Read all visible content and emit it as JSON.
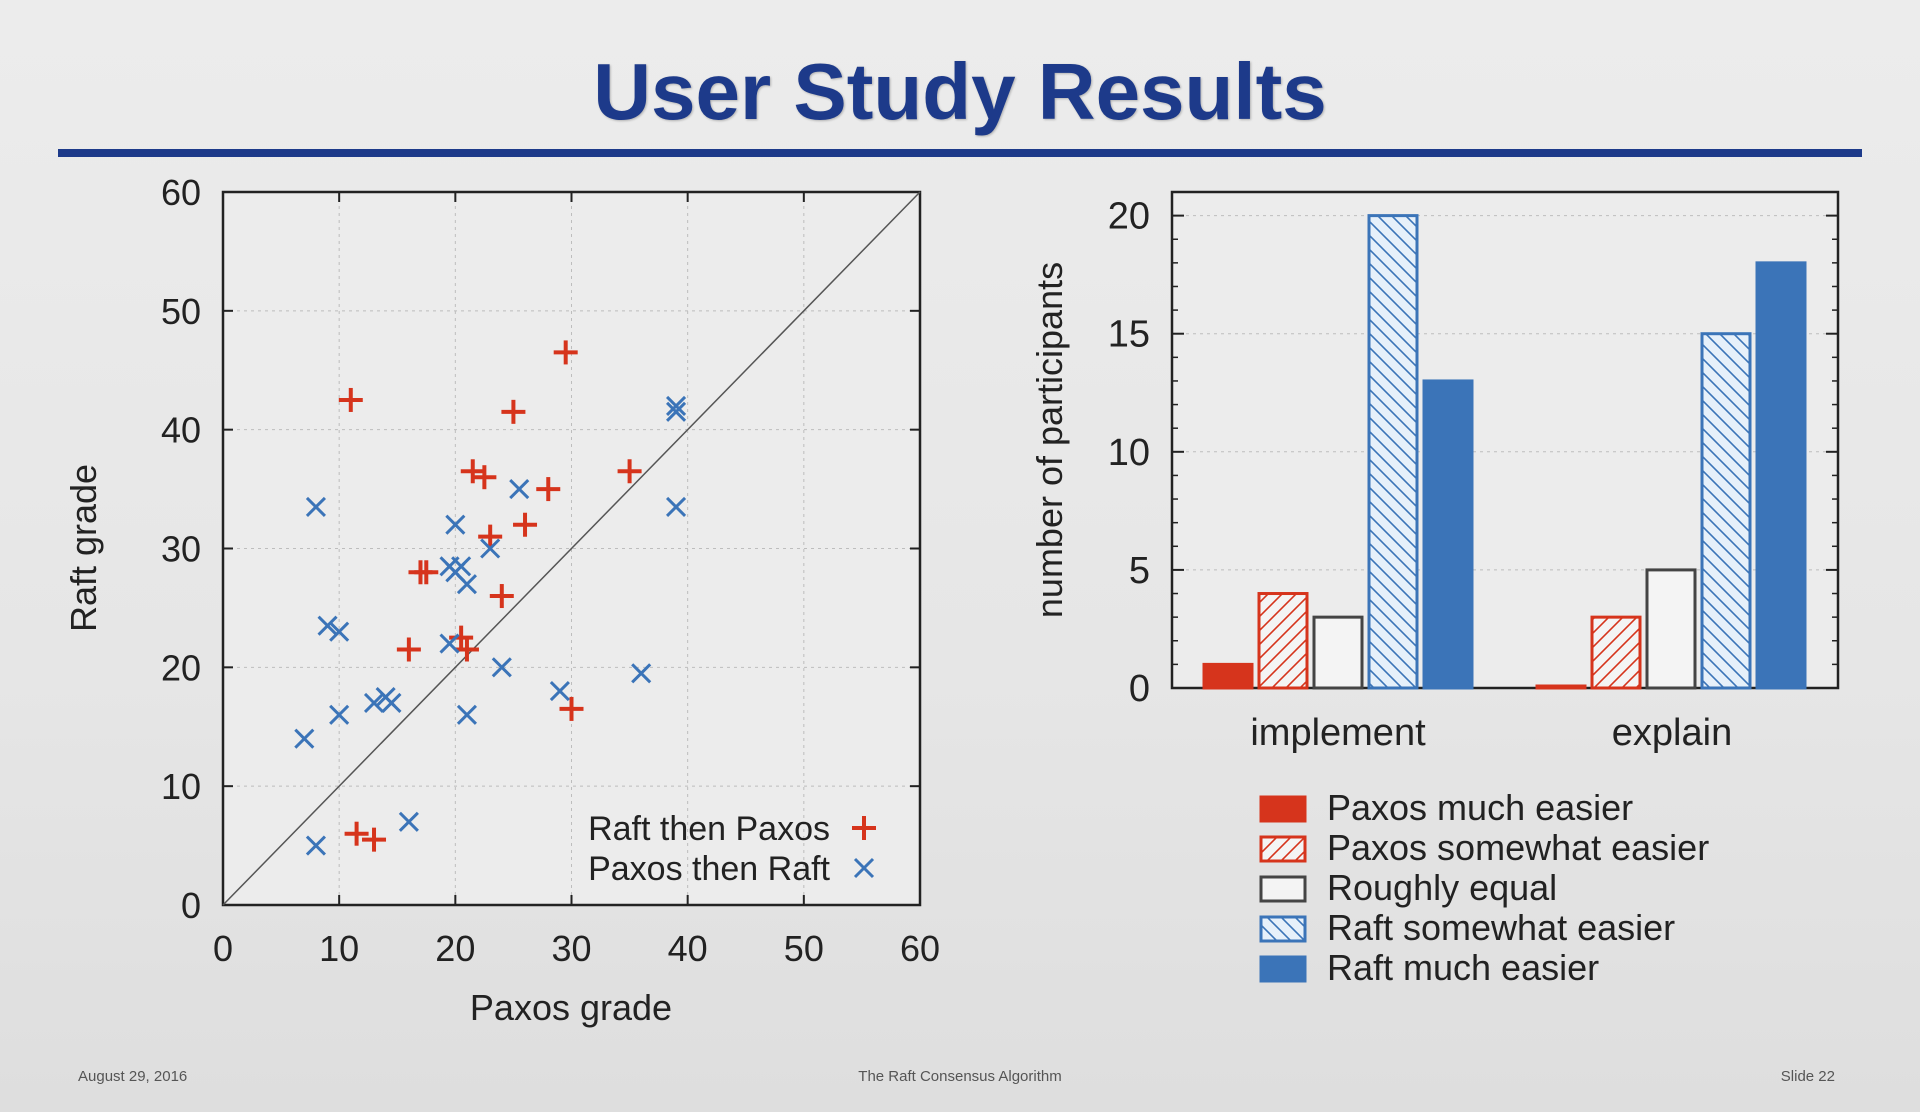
{
  "slide": {
    "title": "User Study Results",
    "footer_left": "August 29, 2016",
    "footer_center": "The Raft Consensus Algorithm",
    "footer_right": "Slide 22"
  },
  "colors": {
    "red": "#d6341c",
    "blue": "#3b74b8",
    "title_blue": "#1d3a8a"
  },
  "chart_data": [
    {
      "type": "scatter",
      "xlabel": "Paxos grade",
      "ylabel": "Raft grade",
      "xlim": [
        0,
        60
      ],
      "ylim": [
        0,
        60
      ],
      "xticks": [
        0,
        10,
        20,
        30,
        40,
        50,
        60
      ],
      "yticks": [
        0,
        10,
        20,
        30,
        40,
        50,
        60
      ],
      "diagonal": true,
      "legend_position": "bottom-right",
      "series": [
        {
          "name": "Raft then Paxos",
          "marker": "plus",
          "color": "#d6341c",
          "points": [
            [
              11,
              42.5
            ],
            [
              29.5,
              46.5
            ],
            [
              25,
              41.5
            ],
            [
              21.5,
              36.5
            ],
            [
              22.5,
              36
            ],
            [
              35,
              36.5
            ],
            [
              28,
              35
            ],
            [
              26,
              32
            ],
            [
              23,
              31
            ],
            [
              17,
              28
            ],
            [
              17.5,
              28
            ],
            [
              16,
              21.5
            ],
            [
              20.5,
              22.5
            ],
            [
              21,
              21.5
            ],
            [
              24,
              26
            ],
            [
              30,
              16.5
            ],
            [
              11.5,
              6
            ],
            [
              13,
              5.5
            ]
          ]
        },
        {
          "name": "Paxos then Raft",
          "marker": "x",
          "color": "#3b74b8",
          "points": [
            [
              8,
              33.5
            ],
            [
              9,
              23.5
            ],
            [
              10,
              23
            ],
            [
              19.5,
              28.5
            ],
            [
              20,
              28
            ],
            [
              20.5,
              28.5
            ],
            [
              21,
              27
            ],
            [
              20,
              32
            ],
            [
              23,
              30
            ],
            [
              25.5,
              35
            ],
            [
              19.5,
              22
            ],
            [
              24,
              20
            ],
            [
              21,
              16
            ],
            [
              29,
              18
            ],
            [
              36,
              19.5
            ],
            [
              39,
              42
            ],
            [
              39,
              41.5
            ],
            [
              39,
              33.5
            ],
            [
              7,
              14
            ],
            [
              10,
              16
            ],
            [
              13,
              17
            ],
            [
              14,
              17.5
            ],
            [
              14.5,
              17
            ],
            [
              16,
              7
            ],
            [
              8,
              5
            ]
          ]
        }
      ]
    },
    {
      "type": "bar",
      "ylabel": "number of participants",
      "ylim": [
        0,
        21
      ],
      "yticks": [
        0,
        5,
        10,
        15,
        20
      ],
      "categories": [
        "implement",
        "explain"
      ],
      "legend_position": "bottom",
      "series": [
        {
          "name": "Paxos much easier",
          "pattern": "solid",
          "color": "#d6341c",
          "values": [
            1,
            0
          ]
        },
        {
          "name": "Paxos somewhat easier",
          "pattern": "hatch-right",
          "color": "#d6341c",
          "values": [
            4,
            3
          ]
        },
        {
          "name": "Roughly equal",
          "pattern": "empty",
          "color": "#444444",
          "values": [
            3,
            5
          ]
        },
        {
          "name": "Raft somewhat easier",
          "pattern": "hatch-left",
          "color": "#3b74b8",
          "values": [
            20,
            15
          ]
        },
        {
          "name": "Raft much easier",
          "pattern": "solid",
          "color": "#3b74b8",
          "values": [
            13,
            18
          ]
        }
      ]
    }
  ]
}
